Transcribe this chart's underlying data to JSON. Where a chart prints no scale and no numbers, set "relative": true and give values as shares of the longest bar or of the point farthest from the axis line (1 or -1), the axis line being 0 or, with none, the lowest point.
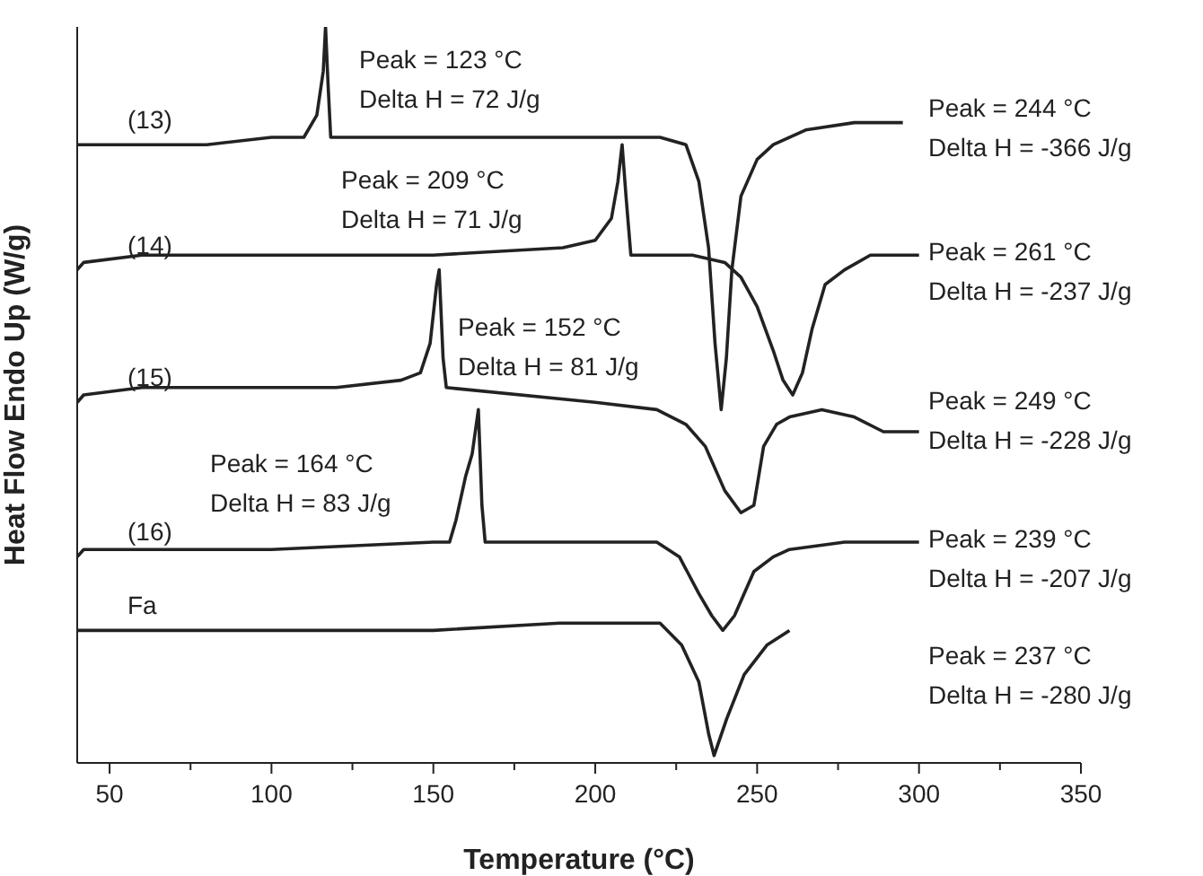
{
  "chart_data": {
    "type": "line",
    "relative": true,
    "xlabel": "Temperature (°C)",
    "ylabel": "Heat Flow Endo Up (W/g)",
    "xlim": [
      40,
      350
    ],
    "xticks": [
      50,
      {
        "value": 75,
        "label": null
      },
      100,
      {
        "value": 125,
        "label": null
      },
      150,
      {
        "value": 175,
        "label": null
      },
      200,
      {
        "value": 225,
        "label": null
      },
      250,
      {
        "value": 275,
        "label": null
      },
      300,
      {
        "value": 325,
        "label": null
      },
      350
    ],
    "marker": "none",
    "line_style": "solid",
    "series": [
      {
        "name": "(13)",
        "color": "#222222",
        "x": [
          40,
          80,
          100,
          110,
          114,
          116,
          116.7,
          117.5,
          118.3,
          150,
          200,
          220,
          228,
          232,
          235,
          237,
          238.9,
          240.5,
          242.2,
          245,
          250,
          255,
          265,
          280,
          295
        ],
        "values": [
          0.84,
          0.84,
          0.85,
          0.85,
          0.88,
          0.94,
          1,
          0.92,
          0.85,
          0.85,
          0.85,
          0.85,
          0.84,
          0.79,
          0.7,
          0.57,
          0.48,
          0.55,
          0.67,
          0.77,
          0.82,
          0.84,
          0.86,
          0.87,
          0.87
        ]
      },
      {
        "name": "(14)",
        "color": "#222222",
        "x": [
          40,
          42,
          60,
          150,
          190,
          200,
          205,
          207,
          208.3,
          209.5,
          211,
          230,
          240,
          245,
          250,
          255,
          258,
          261,
          264,
          267,
          271,
          277,
          285,
          300
        ],
        "values": [
          0.67,
          0.68,
          0.69,
          0.69,
          0.7,
          0.71,
          0.74,
          0.79,
          0.84,
          0.77,
          0.69,
          0.69,
          0.68,
          0.66,
          0.62,
          0.56,
          0.52,
          0.5,
          0.53,
          0.59,
          0.65,
          0.67,
          0.69,
          0.69
        ]
      },
      {
        "name": "(15)",
        "color": "#222222",
        "x": [
          40,
          42,
          60,
          120,
          140,
          146,
          149,
          151,
          151.8,
          153,
          154,
          200,
          219,
          228,
          234,
          240,
          245,
          249,
          252,
          256,
          260,
          270,
          280,
          289,
          300
        ],
        "values": [
          0.49,
          0.5,
          0.51,
          0.51,
          0.52,
          0.53,
          0.57,
          0.65,
          0.67,
          0.55,
          0.51,
          0.49,
          0.48,
          0.46,
          0.43,
          0.37,
          0.34,
          0.35,
          0.43,
          0.46,
          0.47,
          0.48,
          0.47,
          0.45,
          0.45
        ]
      },
      {
        "name": "(16)",
        "color": "#222222",
        "x": [
          40,
          42,
          100,
          150,
          155,
          157,
          160,
          162,
          163.9,
          165,
          166,
          175,
          178,
          180,
          200,
          219,
          226,
          232,
          236,
          239.4,
          243,
          249,
          255,
          260,
          277,
          300
        ],
        "values": [
          0.28,
          0.29,
          0.29,
          0.3,
          0.3,
          0.33,
          0.39,
          0.42,
          0.48,
          0.35,
          0.3,
          0.3,
          0.3,
          0.3,
          0.3,
          0.3,
          0.28,
          0.23,
          0.2,
          0.18,
          0.2,
          0.26,
          0.28,
          0.29,
          0.3,
          0.3
        ]
      },
      {
        "name": "Fa",
        "color": "#222222",
        "x": [
          40,
          100,
          150,
          189,
          190.5,
          192,
          220,
          226.7,
          232,
          235,
          236.7,
          240.6,
          246,
          253,
          260
        ],
        "values": [
          0.18,
          0.18,
          0.18,
          0.19,
          0.19,
          0.19,
          0.19,
          0.16,
          0.11,
          0.04,
          0.01,
          0.06,
          0.12,
          0.16,
          0.18
        ]
      }
    ],
    "annotations": [
      "Peak = 123 °C\nDelta H = 72 J/g",
      "Peak = 209 °C\nDelta H = 71 J/g",
      "Peak = 152 °C\nDelta H = 81 J/g",
      "Peak = 164 °C\nDelta H = 83 J/g",
      "Peak = 244 °C\nDelta H = -366 J/g",
      "Peak = 261 °C\nDelta H = -237 J/g",
      "Peak = 249 °C\nDelta H = -228 J/g",
      "Peak = 239 °C\nDelta H = -207 J/g",
      "Peak = 237 °C\nDelta H = -280 J/g"
    ]
  }
}
